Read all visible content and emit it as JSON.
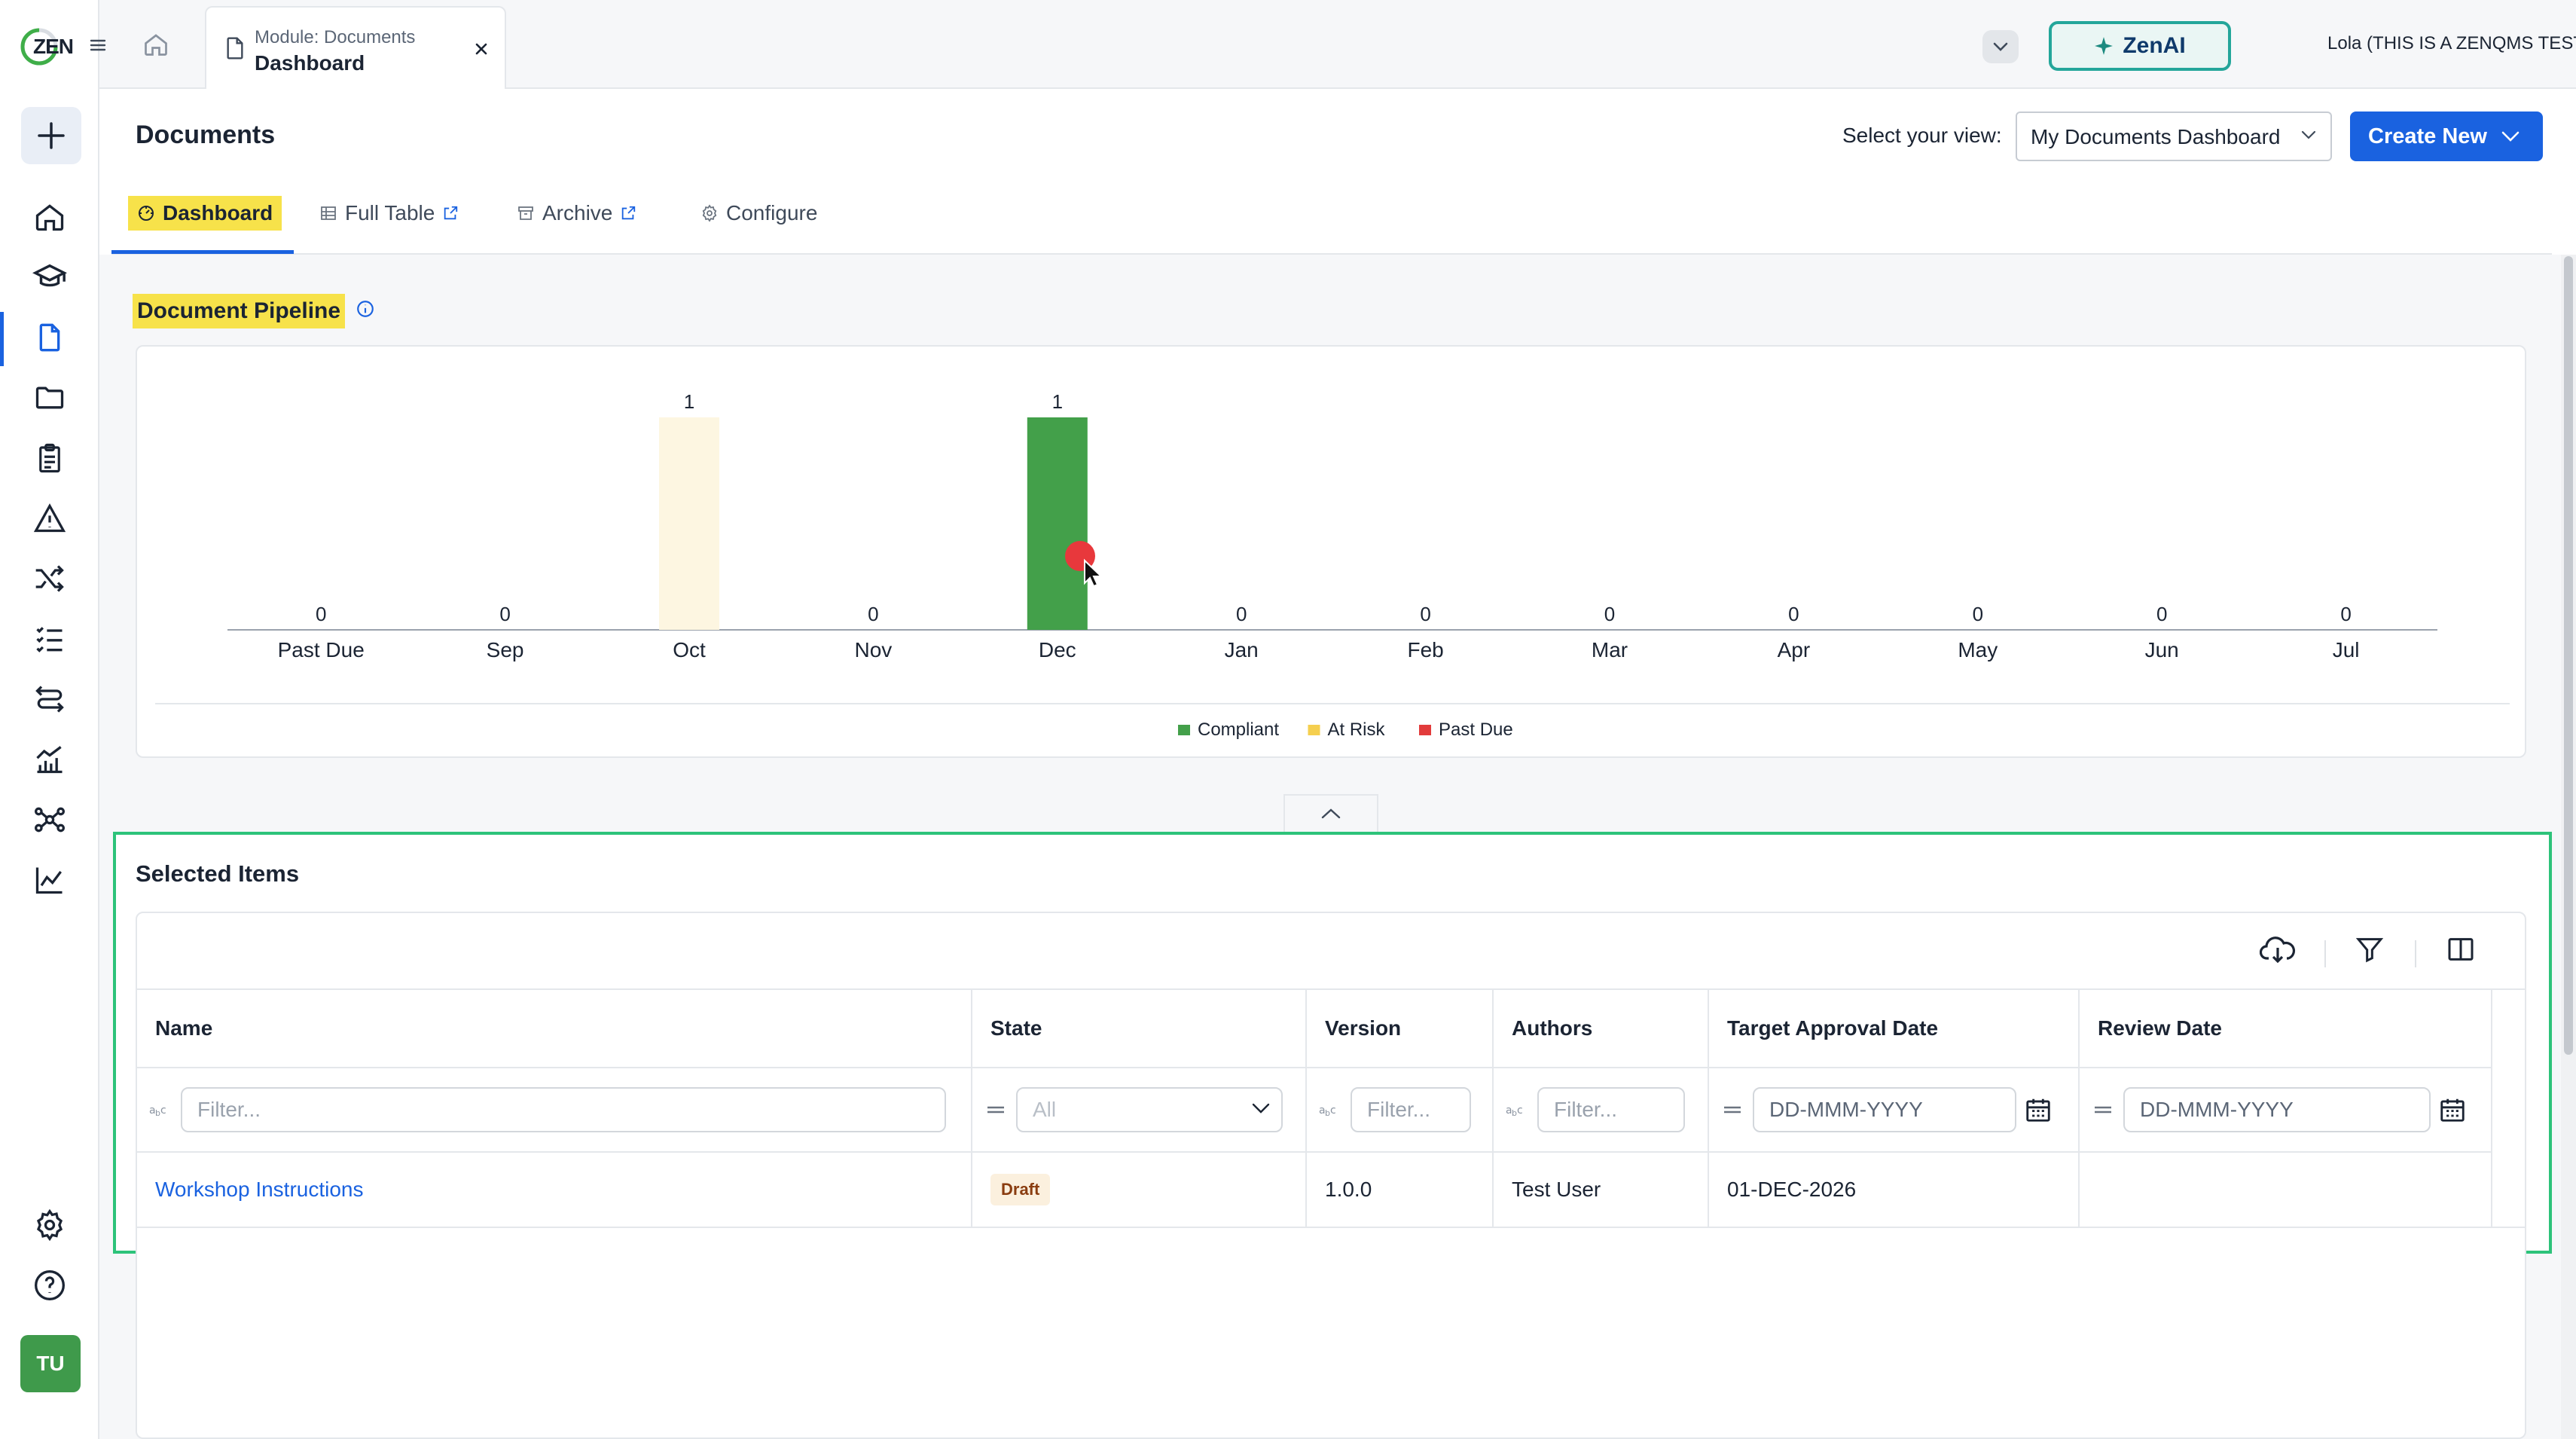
{
  "topbar": {
    "module_label": "Module: Documents",
    "module_page": "Dashboard",
    "zenai_label": "ZenAI",
    "account_name": "Lola (THIS IS A ZENQMS TEST ACCOUNT)"
  },
  "rail": {
    "logo_text": "ZEN",
    "avatar_initials": "TU",
    "icons": [
      "plus-icon",
      "home-icon",
      "training-icon",
      "document-icon",
      "folder-icon",
      "clipboard-icon",
      "warning-icon",
      "shuffle-icon",
      "checklist-icon",
      "workflow-icon",
      "analytics-icon",
      "network-icon",
      "chart-line-icon",
      "settings-icon",
      "help-icon"
    ]
  },
  "header": {
    "title": "Documents",
    "view_label": "Select your view:",
    "view_value": "My Documents Dashboard",
    "create_label": "Create New"
  },
  "tabs": [
    {
      "label": "Dashboard",
      "active": true
    },
    {
      "label": "Full Table"
    },
    {
      "label": "Archive"
    },
    {
      "label": "Configure"
    }
  ],
  "pipeline": {
    "title": "Document Pipeline"
  },
  "chart_data": {
    "type": "bar",
    "title": "Document Pipeline",
    "categories": [
      "Past Due",
      "Sep",
      "Oct",
      "Nov",
      "Dec",
      "Jan",
      "Feb",
      "Mar",
      "Apr",
      "May",
      "Jun",
      "Jul"
    ],
    "values": [
      0,
      0,
      1,
      0,
      1,
      0,
      0,
      0,
      0,
      0,
      0,
      0
    ],
    "bar_status": [
      "",
      "",
      "At Risk",
      "",
      "Compliant",
      "",
      "",
      "",
      "",
      "",
      "",
      ""
    ],
    "series": [
      {
        "name": "Compliant",
        "color": "#43a04a"
      },
      {
        "name": "At Risk",
        "color": "#f5cf4f"
      },
      {
        "name": "Past Due",
        "color": "#e23b3b"
      }
    ],
    "grid": false,
    "legend": "bottom-center"
  },
  "selected": {
    "title": "Selected Items",
    "columns": [
      "Name",
      "State",
      "Version",
      "Authors",
      "Target Approval Date",
      "Review Date"
    ],
    "filters": {
      "name_placeholder": "Filter...",
      "state_value": "All",
      "version_placeholder": "Filter...",
      "authors_placeholder": "Filter...",
      "target_placeholder": "DD-MMM-YYYY",
      "review_placeholder": "DD-MMM-YYYY"
    },
    "rows": [
      {
        "name": "Workshop Instructions",
        "state": "Draft",
        "version": "1.0.0",
        "authors": "Test User",
        "target_approval_date": "01-DEC-2026",
        "review_date": ""
      }
    ]
  }
}
